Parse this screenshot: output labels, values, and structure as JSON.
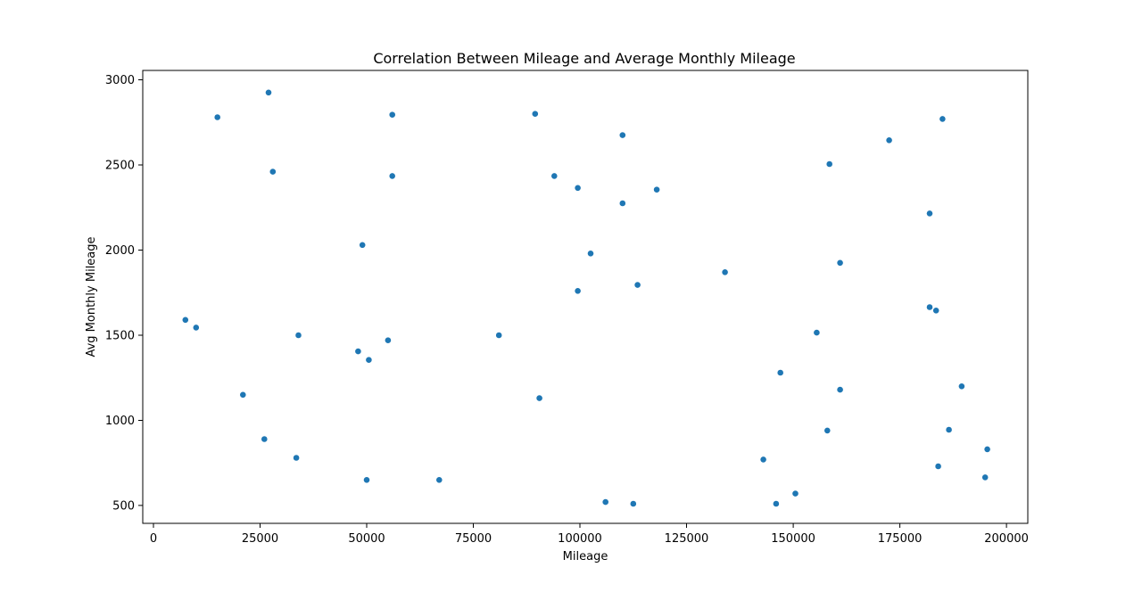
{
  "chart_data": {
    "type": "scatter",
    "title": "Correlation Between Mileage and Average Monthly Mileage",
    "xlabel": "Mileage",
    "ylabel": "Avg Monthly Mileage",
    "xlim": [
      -2500,
      205000
    ],
    "ylim": [
      395,
      3055
    ],
    "xticks": [
      0,
      25000,
      50000,
      75000,
      100000,
      125000,
      150000,
      175000,
      200000
    ],
    "xtick_labels": [
      "0",
      "25000",
      "50000",
      "75000",
      "100000",
      "125000",
      "150000",
      "175000",
      "200000"
    ],
    "yticks": [
      500,
      1000,
      1500,
      2000,
      2500,
      3000
    ],
    "ytick_labels": [
      "500",
      "1000",
      "1500",
      "2000",
      "2500",
      "3000"
    ],
    "grid": false,
    "marker_color": "#1f77b4",
    "x": [
      27000,
      15000,
      56000,
      89500,
      110000,
      185000,
      172500,
      28000,
      56000,
      94000,
      158500,
      99500,
      118000,
      110000,
      182000,
      49000,
      102500,
      161000,
      134000,
      113500,
      99500,
      7500,
      10000,
      182000,
      183500,
      34000,
      81000,
      55000,
      155500,
      48000,
      50500,
      147000,
      21000,
      161000,
      90500,
      189500,
      186500,
      158000,
      26000,
      33500,
      195500,
      143000,
      184000,
      50000,
      67000,
      195000,
      150500,
      106000,
      112500,
      146000
    ],
    "y": [
      2925,
      2780,
      2795,
      2800,
      2675,
      2770,
      2645,
      2460,
      2435,
      2435,
      2505,
      2365,
      2355,
      2275,
      2215,
      2030,
      1980,
      1925,
      1870,
      1795,
      1760,
      1590,
      1545,
      1665,
      1645,
      1500,
      1500,
      1470,
      1515,
      1405,
      1355,
      1280,
      1150,
      1180,
      1130,
      1200,
      945,
      940,
      890,
      780,
      830,
      770,
      730,
      650,
      650,
      665,
      570,
      520,
      510,
      510
    ]
  }
}
